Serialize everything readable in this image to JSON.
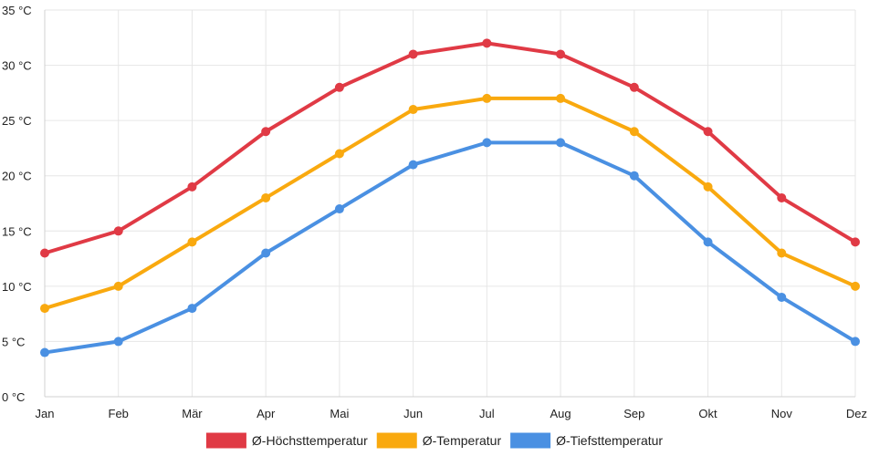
{
  "chart_data": {
    "type": "line",
    "title": "",
    "xlabel": "",
    "ylabel": "",
    "categories": [
      "Jan",
      "Feb",
      "Mär",
      "Apr",
      "Mai",
      "Jun",
      "Jul",
      "Aug",
      "Sep",
      "Okt",
      "Nov",
      "Dez"
    ],
    "y_ticks": [
      "0 °C",
      "5 °C",
      "10 °C",
      "15 °C",
      "20 °C",
      "25 °C",
      "30 °C",
      "35 °C"
    ],
    "ylim": [
      0,
      35
    ],
    "grid": true,
    "legend_position": "bottom",
    "series": [
      {
        "name": "Ø-Höchsttemperatur",
        "color": "#e03a45",
        "values": [
          13,
          15,
          19,
          24,
          28,
          31,
          32,
          31,
          28,
          24,
          18,
          14
        ]
      },
      {
        "name": "Ø-Temperatur",
        "color": "#f9a90f",
        "values": [
          8,
          10,
          14,
          18,
          22,
          26,
          27,
          27,
          24,
          19,
          13,
          10
        ]
      },
      {
        "name": "Ø-Tiefsttemperatur",
        "color": "#4a90e2",
        "values": [
          4,
          5,
          8,
          13,
          17,
          21,
          23,
          23,
          20,
          14,
          9,
          5
        ]
      }
    ]
  }
}
